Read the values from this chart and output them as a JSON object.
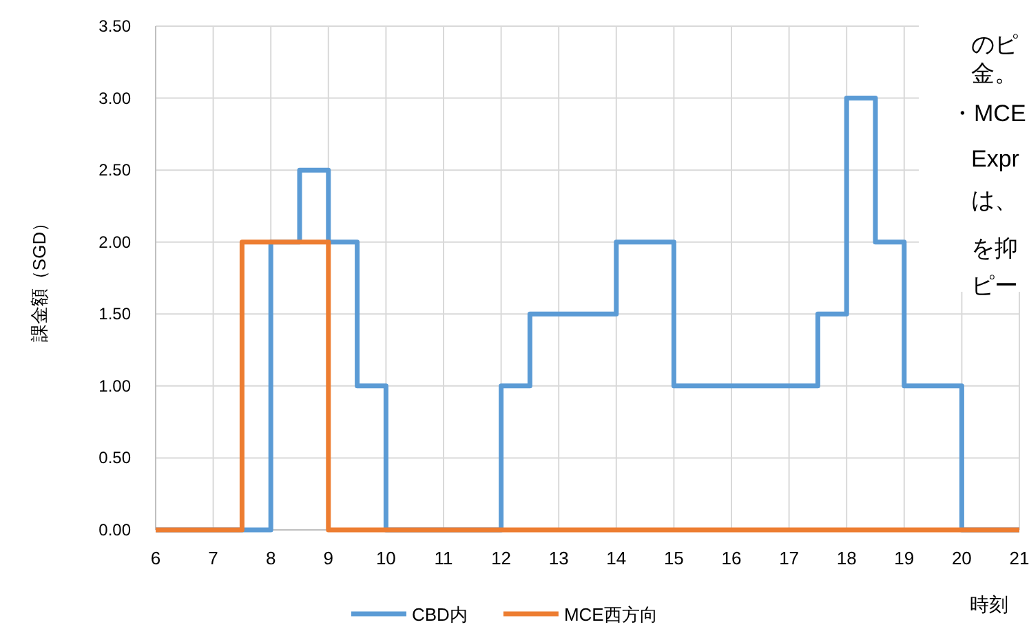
{
  "chart_data": {
    "type": "step",
    "xlabel": "時刻",
    "ylabel": "課金額（SGD）",
    "xlim": [
      6,
      21
    ],
    "xticks": [
      6,
      7,
      8,
      9,
      10,
      11,
      12,
      13,
      14,
      15,
      16,
      17,
      18,
      19,
      20,
      21
    ],
    "ylim": [
      0,
      3.5
    ],
    "yticks": [
      {
        "value": 0,
        "label": "0.00"
      },
      {
        "value": 0.5,
        "label": "0.50"
      },
      {
        "value": 1,
        "label": "1.00"
      },
      {
        "value": 1.5,
        "label": "1.50"
      },
      {
        "value": 2,
        "label": "2.00"
      },
      {
        "value": 2.5,
        "label": "2.50"
      },
      {
        "value": 3,
        "label": "3.00"
      },
      {
        "value": 3.5,
        "label": "3.50"
      }
    ],
    "grid": true,
    "legend": "bottom",
    "series": [
      {
        "name": "CBD内",
        "color": "#5b9bd5",
        "x": [
          6,
          8,
          8.5,
          9,
          9.5,
          10,
          12,
          12.5,
          14,
          15,
          17.5,
          18,
          18.5,
          19,
          20,
          21
        ],
        "values": [
          0,
          2,
          2.5,
          2,
          1,
          0,
          1,
          1.5,
          2,
          1,
          1.5,
          3,
          2,
          1,
          0,
          0
        ]
      },
      {
        "name": "MCE西方向",
        "color": "#ed7d31",
        "x": [
          6,
          7.5,
          9,
          21
        ],
        "values": [
          0,
          2,
          0,
          0
        ]
      }
    ],
    "annotations": [
      "のピ",
      "金。",
      "・MCE",
      "Expr",
      "は、",
      "を抑",
      "ピー"
    ]
  }
}
